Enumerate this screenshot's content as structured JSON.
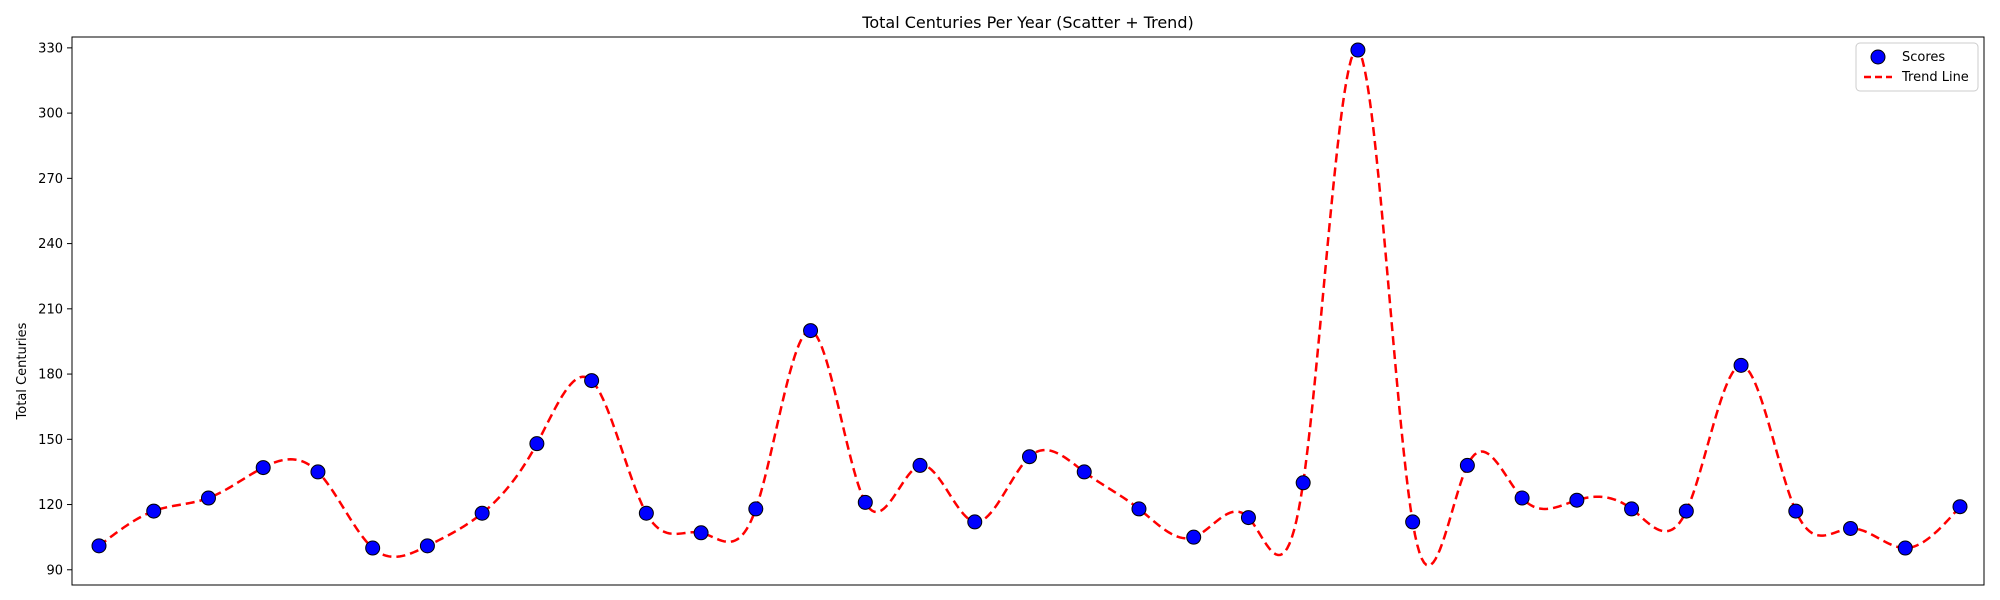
{
  "chart_data": {
    "type": "scatter",
    "title": "Total Centuries Per Year (Scatter + Trend)",
    "xlabel": "",
    "ylabel": "Total Centuries",
    "ylim": [
      83,
      335
    ],
    "yticks": [
      90,
      120,
      150,
      180,
      210,
      240,
      270,
      300,
      330
    ],
    "grid": false,
    "legend_position": "top-right",
    "series": [
      {
        "name": "Scores",
        "kind": "scatter",
        "color": "#0000ff",
        "edge_color": "#000000",
        "values": [
          101,
          117,
          123,
          137,
          135,
          100,
          101,
          116,
          148,
          177,
          116,
          107,
          118,
          200,
          121,
          138,
          112,
          142,
          135,
          118,
          105,
          114,
          130,
          329,
          112,
          138,
          123,
          122,
          118,
          117,
          184,
          117,
          109,
          100,
          119
        ]
      },
      {
        "name": "Trend Line",
        "kind": "line",
        "style": "dashed",
        "color": "#ff0000"
      }
    ]
  }
}
